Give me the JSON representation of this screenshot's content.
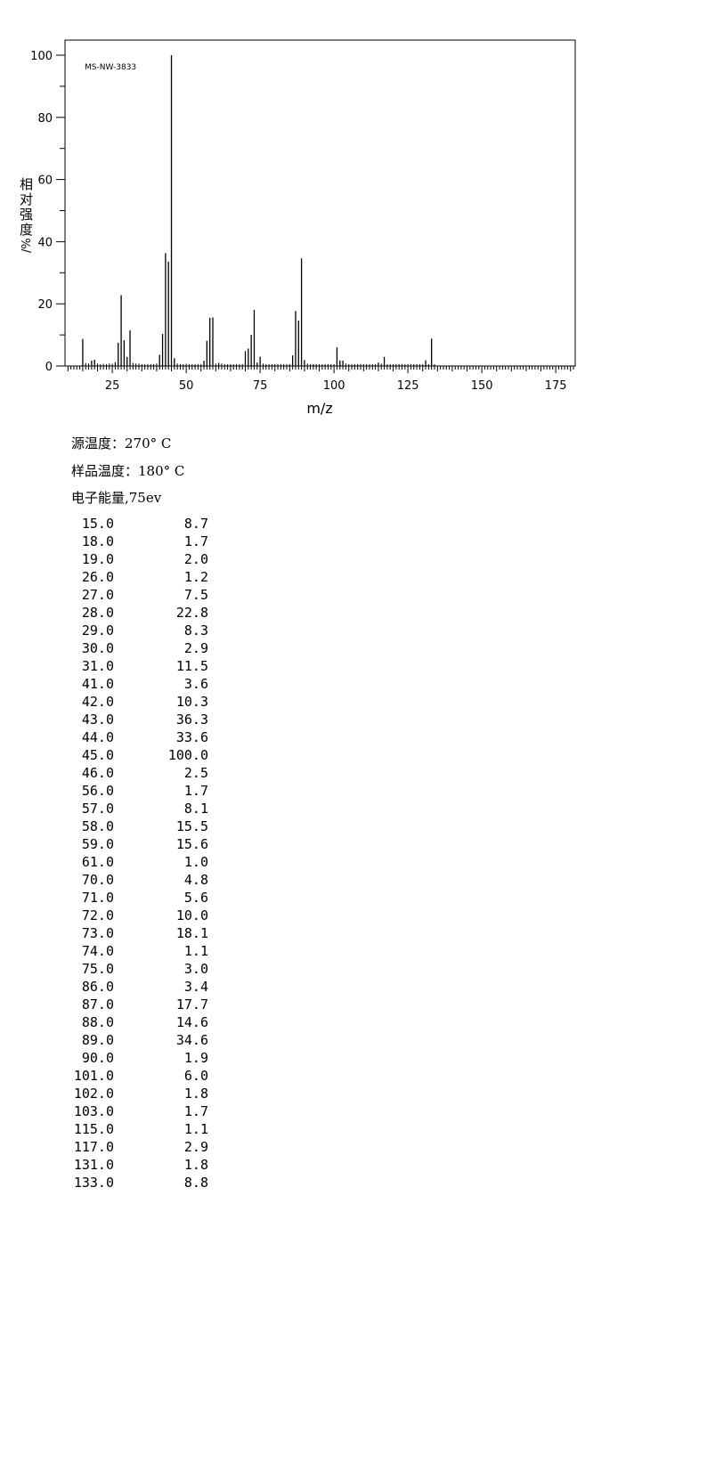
{
  "chart_data": {
    "type": "bar",
    "spectrum_id": "MS-NW-3833",
    "xlabel": "m/z",
    "ylabel": "相对强度/%",
    "xlim": [
      9,
      182
    ],
    "ylim": [
      0,
      105
    ],
    "xticks": [
      25,
      50,
      75,
      100,
      125,
      150,
      175
    ],
    "yticks": [
      0,
      20,
      40,
      60,
      80,
      100
    ],
    "x": [
      15,
      18,
      19,
      26,
      27,
      28,
      29,
      30,
      31,
      41,
      42,
      43,
      44,
      45,
      46,
      56,
      57,
      58,
      59,
      61,
      70,
      71,
      72,
      73,
      74,
      75,
      86,
      87,
      88,
      89,
      90,
      101,
      102,
      103,
      115,
      117,
      131,
      133
    ],
    "values": [
      8.7,
      1.7,
      2.0,
      1.2,
      7.5,
      22.8,
      8.3,
      2.9,
      11.5,
      3.6,
      10.3,
      36.3,
      33.6,
      100.0,
      2.5,
      1.7,
      8.1,
      15.5,
      15.6,
      1.0,
      4.8,
      5.6,
      10.0,
      18.1,
      1.1,
      3.0,
      3.4,
      17.7,
      14.6,
      34.6,
      1.9,
      6.0,
      1.8,
      1.7,
      1.1,
      2.9,
      1.8,
      8.8
    ],
    "minor_x": [
      16,
      17,
      20,
      21,
      22,
      23,
      24,
      25,
      32,
      33,
      34,
      35,
      36,
      37,
      38,
      39,
      40,
      47,
      48,
      49,
      50,
      51,
      52,
      53,
      54,
      55,
      60,
      62,
      63,
      64,
      65,
      66,
      67,
      68,
      69,
      76,
      77,
      78,
      79,
      80,
      81,
      82,
      83,
      84,
      85,
      91,
      92,
      93,
      94,
      95,
      96,
      97,
      98,
      99,
      100,
      104,
      105,
      106,
      107,
      108,
      109,
      110,
      111,
      112,
      113,
      114,
      116,
      118,
      119,
      120,
      121,
      122,
      123,
      124,
      125,
      126,
      127,
      128,
      129,
      130,
      132,
      134
    ],
    "minor_values": [
      1.0,
      0.8,
      0.8,
      0.6,
      0.7,
      0.6,
      0.8,
      0.7,
      1.0,
      0.8,
      0.8,
      0.6,
      0.6,
      0.6,
      0.6,
      0.6,
      0.8,
      0.8,
      0.6,
      0.6,
      0.7,
      0.6,
      0.6,
      0.6,
      0.6,
      0.6,
      0.8,
      0.8,
      0.6,
      0.6,
      0.6,
      0.6,
      0.6,
      0.6,
      0.6,
      0.8,
      0.6,
      0.6,
      0.6,
      0.6,
      0.6,
      0.6,
      0.6,
      0.6,
      0.6,
      0.8,
      0.6,
      0.6,
      0.6,
      0.6,
      0.6,
      0.6,
      0.6,
      0.6,
      0.6,
      0.8,
      0.6,
      0.6,
      0.6,
      0.6,
      0.6,
      0.6,
      0.6,
      0.6,
      0.6,
      0.6,
      0.8,
      0.6,
      0.6,
      0.6,
      0.6,
      0.6,
      0.6,
      0.6,
      0.6,
      0.6,
      0.6,
      0.6,
      0.6,
      0.6,
      0.6,
      0.6
    ],
    "grid": false,
    "legend": "none"
  },
  "conditions": {
    "source_temp": "源温度：270° C",
    "sample_temp": "样品温度：180° C",
    "electron_energy": "电子能量,75ev"
  },
  "peak_table": {
    "rows": [
      {
        "mz": "15.0",
        "ab": "8.7"
      },
      {
        "mz": "18.0",
        "ab": "1.7"
      },
      {
        "mz": "19.0",
        "ab": "2.0"
      },
      {
        "mz": "26.0",
        "ab": "1.2"
      },
      {
        "mz": "27.0",
        "ab": "7.5"
      },
      {
        "mz": "28.0",
        "ab": "22.8"
      },
      {
        "mz": "29.0",
        "ab": "8.3"
      },
      {
        "mz": "30.0",
        "ab": "2.9"
      },
      {
        "mz": "31.0",
        "ab": "11.5"
      },
      {
        "mz": "41.0",
        "ab": "3.6"
      },
      {
        "mz": "42.0",
        "ab": "10.3"
      },
      {
        "mz": "43.0",
        "ab": "36.3"
      },
      {
        "mz": "44.0",
        "ab": "33.6"
      },
      {
        "mz": "45.0",
        "ab": "100.0"
      },
      {
        "mz": "46.0",
        "ab": "2.5"
      },
      {
        "mz": "56.0",
        "ab": "1.7"
      },
      {
        "mz": "57.0",
        "ab": "8.1"
      },
      {
        "mz": "58.0",
        "ab": "15.5"
      },
      {
        "mz": "59.0",
        "ab": "15.6"
      },
      {
        "mz": "61.0",
        "ab": "1.0"
      },
      {
        "mz": "70.0",
        "ab": "4.8"
      },
      {
        "mz": "71.0",
        "ab": "5.6"
      },
      {
        "mz": "72.0",
        "ab": "10.0"
      },
      {
        "mz": "73.0",
        "ab": "18.1"
      },
      {
        "mz": "74.0",
        "ab": "1.1"
      },
      {
        "mz": "75.0",
        "ab": "3.0"
      },
      {
        "mz": "86.0",
        "ab": "3.4"
      },
      {
        "mz": "87.0",
        "ab": "17.7"
      },
      {
        "mz": "88.0",
        "ab": "14.6"
      },
      {
        "mz": "89.0",
        "ab": "34.6"
      },
      {
        "mz": "90.0",
        "ab": "1.9"
      },
      {
        "mz": "101.0",
        "ab": "6.0"
      },
      {
        "mz": "102.0",
        "ab": "1.8"
      },
      {
        "mz": "103.0",
        "ab": "1.7"
      },
      {
        "mz": "115.0",
        "ab": "1.1"
      },
      {
        "mz": "117.0",
        "ab": "2.9"
      },
      {
        "mz": "131.0",
        "ab": "1.8"
      },
      {
        "mz": "133.0",
        "ab": "8.8"
      }
    ]
  }
}
